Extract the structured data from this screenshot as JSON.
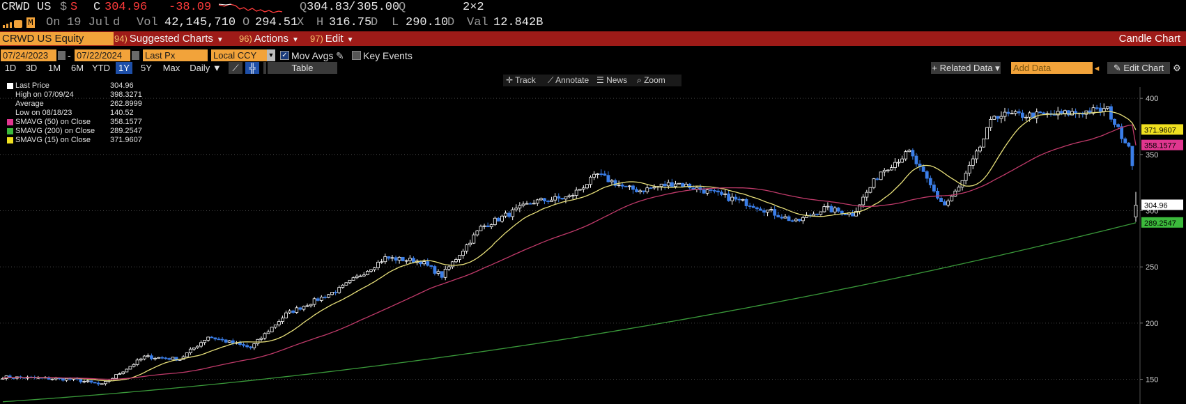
{
  "quote": {
    "ticker": "CRWD US",
    "currency_sym": "$",
    "currency_s": "S",
    "close_label": "C",
    "close": "304.96",
    "change": "-38.09",
    "bidask_q": "Q",
    "bid": "304.83",
    "ask": "305.00",
    "ask_suffix": "Q",
    "size": "2×2",
    "on_label": "On",
    "date": "19 Jul",
    "date_suffix": "d",
    "vol_label": "Vol",
    "vol": "42,145,710",
    "o_label": "O",
    "open": "294.51",
    "open_suffix": "X",
    "h_label": "H",
    "high": "316.75",
    "high_suffix": "D",
    "l_label": "L",
    "low": "290.10",
    "low_suffix": "D",
    "val_label": "Val",
    "val": "12.842B"
  },
  "toolbar": {
    "security": "CRWD US Equity",
    "menus": [
      {
        "num": "94)",
        "label": "Suggested Charts"
      },
      {
        "num": "96)",
        "label": "Actions"
      },
      {
        "num": "97)",
        "label": "Edit"
      }
    ],
    "chart_title": "Candle Chart"
  },
  "settings": {
    "start_date": "07/24/2023",
    "dash": "-",
    "end_date": "07/22/2024",
    "field": "Last Px",
    "ccy": "Local CCY",
    "mov_avgs": "Mov Avgs",
    "key_events": "Key Events"
  },
  "ranges": [
    "1D",
    "3D",
    "1M",
    "6M",
    "YTD",
    "1Y",
    "5Y",
    "Max"
  ],
  "selected_range": "1Y",
  "period": "Daily",
  "table_label": "Table",
  "related_data": "+ Related Data",
  "add_data_placeholder": "Add Data",
  "edit_chart": "Edit Chart",
  "chart_tools": [
    "Track",
    "Annotate",
    "News",
    "Zoom"
  ],
  "legend": [
    {
      "label": "Last Price",
      "value": "304.96",
      "color": "#ffffff"
    },
    {
      "label": "High on 07/09/24",
      "value": "398.3271",
      "color": ""
    },
    {
      "label": "Average",
      "value": "262.8999",
      "color": ""
    },
    {
      "label": "Low on 08/18/23",
      "value": "140.52",
      "color": ""
    },
    {
      "label": "SMAVG (50)  on Close",
      "value": "358.1577",
      "color": "#e0368f"
    },
    {
      "label": "SMAVG (200)  on Close",
      "value": "289.2547",
      "color": "#3cba3c"
    },
    {
      "label": "SMAVG (15)  on Close",
      "value": "371.9607",
      "color": "#f0e020"
    }
  ],
  "chart_data": {
    "type": "candlestick",
    "title": "",
    "y_ticks": [
      150,
      200,
      250,
      300,
      350,
      400
    ],
    "ylim": [
      128,
      410
    ],
    "y_side": "right",
    "grid": "dotted horizontal",
    "period": "07/24/2023 - 07/22/2024",
    "colors": {
      "up": "#ffffff",
      "down": "#3b7ee8",
      "sma15": "#e8e07a",
      "sma50": "#c03a6a",
      "sma200": "#3a9a3a"
    },
    "anchors": [
      [
        0,
        152
      ],
      [
        20,
        150
      ],
      [
        28,
        145
      ],
      [
        40,
        170
      ],
      [
        50,
        168
      ],
      [
        58,
        188
      ],
      [
        70,
        178
      ],
      [
        80,
        208
      ],
      [
        95,
        230
      ],
      [
        108,
        258
      ],
      [
        118,
        255
      ],
      [
        124,
        242
      ],
      [
        135,
        285
      ],
      [
        150,
        308
      ],
      [
        160,
        312
      ],
      [
        168,
        332
      ],
      [
        176,
        320
      ],
      [
        180,
        318
      ],
      [
        190,
        325
      ],
      [
        198,
        318
      ],
      [
        212,
        305
      ],
      [
        224,
        290
      ],
      [
        232,
        302
      ],
      [
        240,
        297
      ],
      [
        248,
        335
      ],
      [
        256,
        352
      ],
      [
        264,
        312
      ],
      [
        266,
        305
      ],
      [
        270,
        320
      ],
      [
        275,
        350
      ],
      [
        280,
        385
      ],
      [
        295,
        385
      ],
      [
        312,
        390
      ],
      [
        315,
        372
      ],
      [
        318,
        358
      ],
      [
        319,
        343
      ],
      [
        320,
        305
      ]
    ],
    "last_candle": {
      "open": 294.51,
      "high": 316.75,
      "low": 290.1,
      "close": 304.96
    },
    "price_tags": [
      {
        "label": "sma15",
        "value": 371.9607,
        "text": "371.9607",
        "color": "#f0e020"
      },
      {
        "label": "sma50",
        "value": 358.1577,
        "text": "358.1577",
        "color": "#e0368f"
      },
      {
        "label": "last",
        "value": 304.96,
        "text": "304.96",
        "color": "#ffffff"
      },
      {
        "label": "sma200",
        "value": 289.2547,
        "text": "289.2547",
        "color": "#3cba3c"
      }
    ],
    "sma_end": {
      "sma15": 371.9607,
      "sma50": 358.1577,
      "sma200": 289.2547
    },
    "sma200_start": 130
  }
}
